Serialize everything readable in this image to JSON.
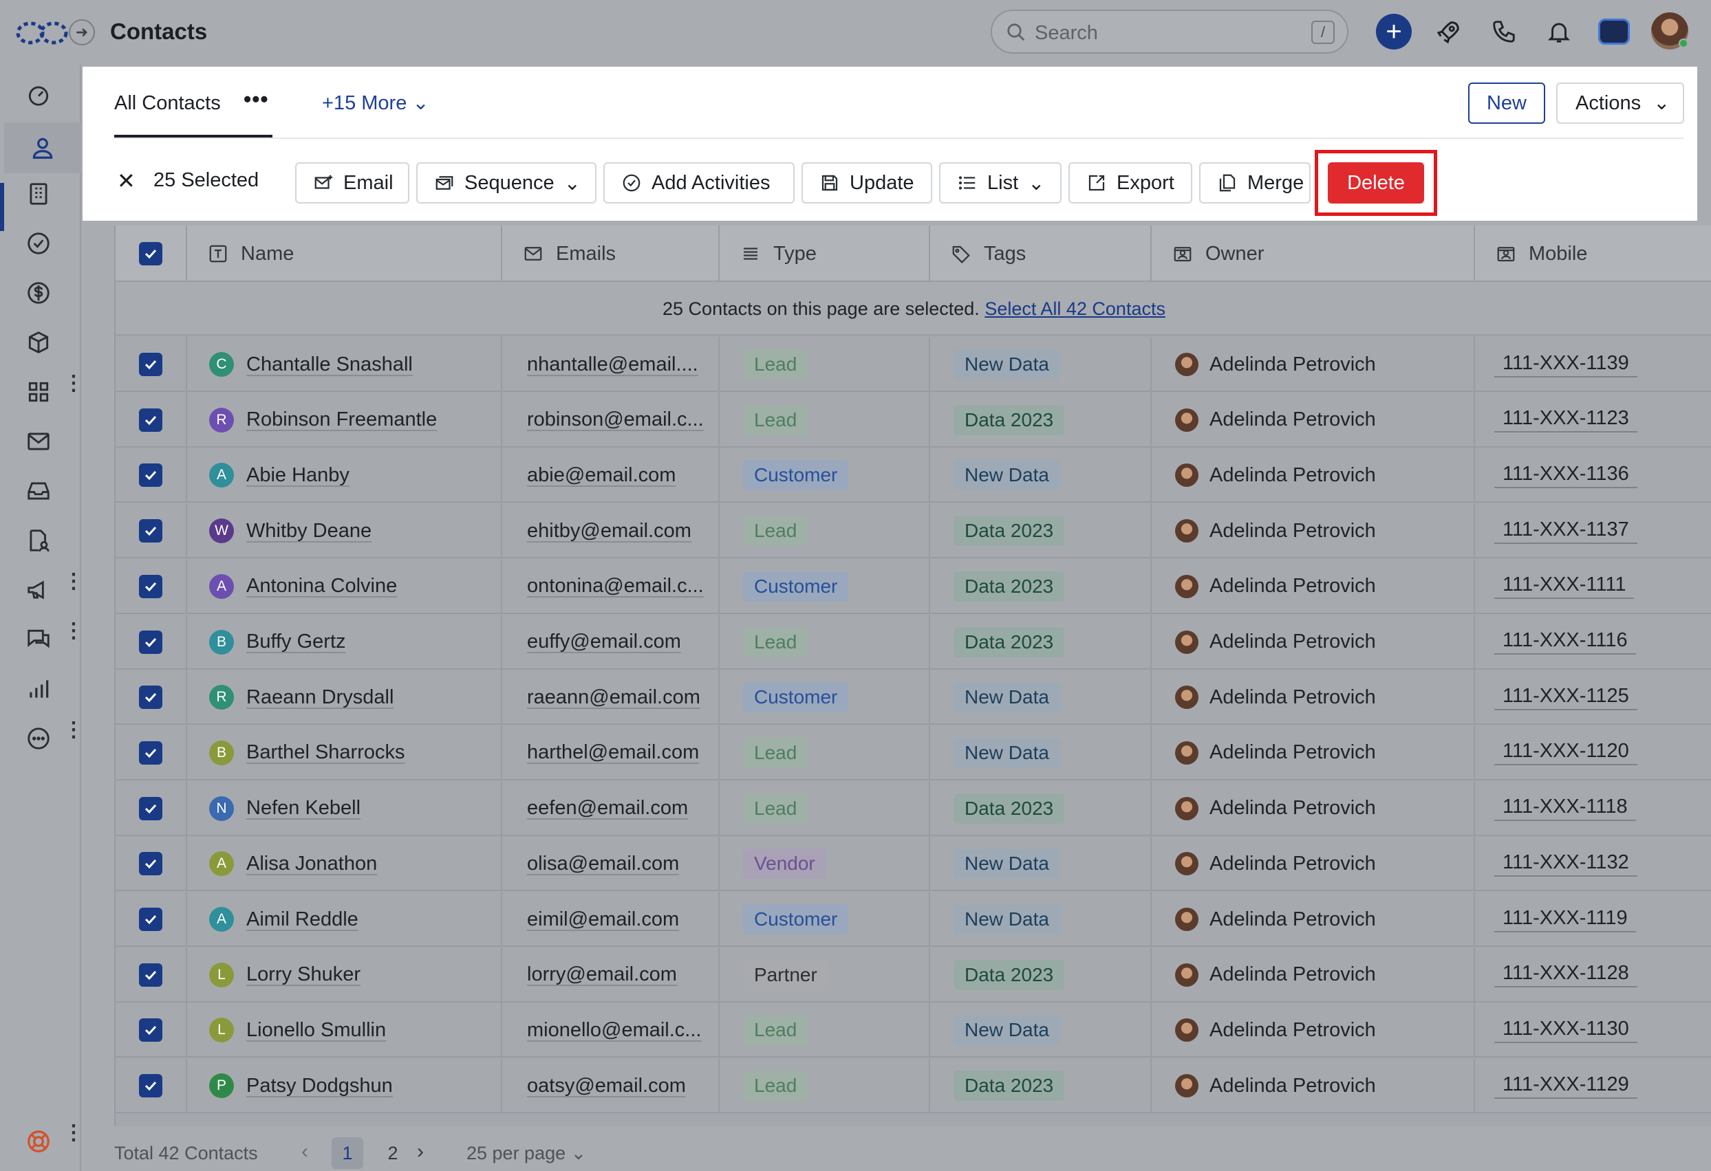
{
  "header": {
    "title": "Contacts",
    "search_placeholder": "Search",
    "search_shortcut": "/"
  },
  "views": {
    "active_tab": "All Contacts",
    "more_tabs": "+15 More",
    "new_label": "New",
    "actions_label": "Actions"
  },
  "toolbar": {
    "selected_label": "25 Selected",
    "email": "Email",
    "sequence": "Sequence",
    "add_activities": "Add Activities",
    "update": "Update",
    "list": "List",
    "export": "Export",
    "merge": "Merge",
    "delete": "Delete"
  },
  "table": {
    "columns": {
      "name": "Name",
      "emails": "Emails",
      "type": "Type",
      "tags": "Tags",
      "owner": "Owner",
      "mobile": "Mobile"
    },
    "banner_text": "25 Contacts on this page are selected.",
    "banner_link": "Select All 42 Contacts",
    "rows": [
      {
        "initial": "C",
        "color": "#2f8f77",
        "name": "Chantalle Snashall",
        "email": "nhantalle@email....",
        "type": "Lead",
        "tag": "New Data",
        "owner": "Adelinda Petrovich",
        "mobile": "111-XXX-1139"
      },
      {
        "initial": "R",
        "color": "#6c4fb0",
        "name": "Robinson Freemantle",
        "email": "robinson@email.c...",
        "type": "Lead",
        "tag": "Data 2023",
        "owner": "Adelinda Petrovich",
        "mobile": "111-XXX-1123"
      },
      {
        "initial": "A",
        "color": "#2f8f9a",
        "name": "Abie Hanby",
        "email": "abie@email.com",
        "type": "Customer",
        "tag": "New Data",
        "owner": "Adelinda Petrovich",
        "mobile": "111-XXX-1136"
      },
      {
        "initial": "W",
        "color": "#5a3a8a",
        "name": "Whitby Deane",
        "email": "ehitby@email.com",
        "type": "Lead",
        "tag": "Data 2023",
        "owner": "Adelinda Petrovich",
        "mobile": "111-XXX-1137"
      },
      {
        "initial": "A",
        "color": "#6c4fb0",
        "name": "Antonina Colvine",
        "email": "ontonina@email.c...",
        "type": "Customer",
        "tag": "Data 2023",
        "owner": "Adelinda Petrovich",
        "mobile": "111-XXX-1111"
      },
      {
        "initial": "B",
        "color": "#2f8f9a",
        "name": "Buffy Gertz",
        "email": "euffy@email.com",
        "type": "Lead",
        "tag": "Data 2023",
        "owner": "Adelinda Petrovich",
        "mobile": "111-XXX-1116"
      },
      {
        "initial": "R",
        "color": "#2f8f77",
        "name": "Raeann Drysdall",
        "email": "raeann@email.com",
        "type": "Customer",
        "tag": "New Data",
        "owner": "Adelinda Petrovich",
        "mobile": "111-XXX-1125"
      },
      {
        "initial": "B",
        "color": "#8a9a3a",
        "name": "Barthel Sharrocks",
        "email": "harthel@email.com",
        "type": "Lead",
        "tag": "New Data",
        "owner": "Adelinda Petrovich",
        "mobile": "111-XXX-1120"
      },
      {
        "initial": "N",
        "color": "#3a6ab0",
        "name": "Nefen Kebell",
        "email": "eefen@email.com",
        "type": "Lead",
        "tag": "Data 2023",
        "owner": "Adelinda Petrovich",
        "mobile": "111-XXX-1118"
      },
      {
        "initial": "A",
        "color": "#8a9a3a",
        "name": "Alisa Jonathon",
        "email": "olisa@email.com",
        "type": "Vendor",
        "tag": "New Data",
        "owner": "Adelinda Petrovich",
        "mobile": "111-XXX-1132"
      },
      {
        "initial": "A",
        "color": "#2f8f9a",
        "name": "Aimil Reddle",
        "email": "eimil@email.com",
        "type": "Customer",
        "tag": "New Data",
        "owner": "Adelinda Petrovich",
        "mobile": "111-XXX-1119"
      },
      {
        "initial": "L",
        "color": "#8a9a3a",
        "name": "Lorry Shuker",
        "email": "lorry@email.com",
        "type": "Partner",
        "tag": "Data 2023",
        "owner": "Adelinda Petrovich",
        "mobile": "111-XXX-1128"
      },
      {
        "initial": "L",
        "color": "#8a9a3a",
        "name": "Lionello Smullin",
        "email": "mionello@email.c...",
        "type": "Lead",
        "tag": "New Data",
        "owner": "Adelinda Petrovich",
        "mobile": "111-XXX-1130"
      },
      {
        "initial": "P",
        "color": "#2f8a4a",
        "name": "Patsy Dodgshun",
        "email": "oatsy@email.com",
        "type": "Lead",
        "tag": "Data 2023",
        "owner": "Adelinda Petrovich",
        "mobile": "111-XXX-1129"
      }
    ]
  },
  "footer": {
    "total": "Total 42 Contacts",
    "page1": "1",
    "page2": "2",
    "per_page": "25 per page"
  },
  "colors": {
    "accent": "#1a3a86",
    "danger": "#e02a2e",
    "highlight": "#e2161b"
  }
}
